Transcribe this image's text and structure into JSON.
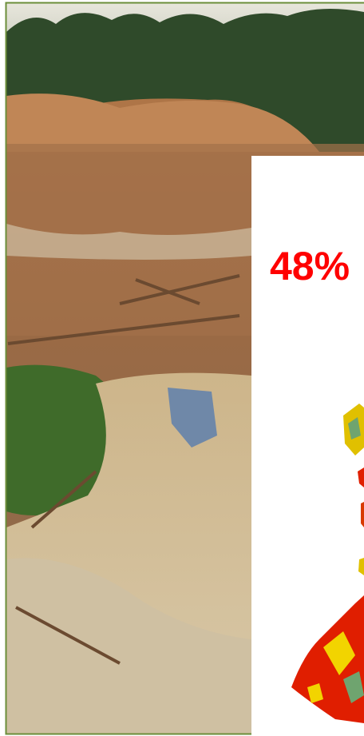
{
  "callout": {
    "text": "48%"
  }
}
